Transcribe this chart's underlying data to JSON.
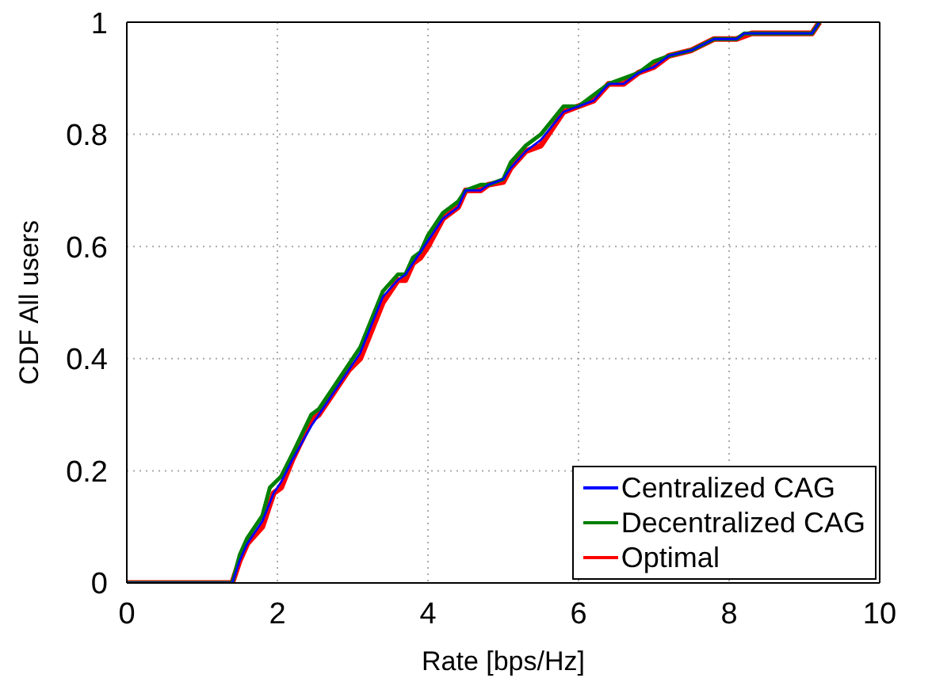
{
  "chart_data": {
    "type": "line",
    "xlabel": "Rate [bps/Hz]",
    "ylabel": "CDF All users",
    "xlim": [
      0,
      10
    ],
    "xticks": [
      0,
      2,
      4,
      6,
      8,
      10
    ],
    "ylim": [
      0,
      1
    ],
    "yticks": [
      0,
      0.2,
      0.4,
      0.6,
      0.8,
      1
    ],
    "grid": true,
    "legend": "bottom right",
    "marker": "none",
    "line_style": "solid",
    "series": [
      {
        "name": "Centralized CAG",
        "color": "#0000ff",
        "x": [
          0,
          1.4,
          1.5,
          1.6,
          1.8,
          1.95,
          2.05,
          2.2,
          2.45,
          2.55,
          2.8,
          2.95,
          3.1,
          3.4,
          3.6,
          3.7,
          3.8,
          3.9,
          4.0,
          4.2,
          4.4,
          4.5,
          4.7,
          4.8,
          5.0,
          5.1,
          5.3,
          5.5,
          5.8,
          6.0,
          6.2,
          6.4,
          6.6,
          6.8,
          7.0,
          7.2,
          7.5,
          7.8,
          8.1,
          8.2,
          9.1,
          9.2
        ],
        "values": [
          0,
          0,
          0.04,
          0.07,
          0.11,
          0.16,
          0.18,
          0.22,
          0.28,
          0.3,
          0.35,
          0.38,
          0.41,
          0.51,
          0.54,
          0.55,
          0.57,
          0.59,
          0.61,
          0.65,
          0.67,
          0.7,
          0.7,
          0.71,
          0.72,
          0.74,
          0.77,
          0.79,
          0.84,
          0.85,
          0.86,
          0.89,
          0.89,
          0.91,
          0.92,
          0.94,
          0.95,
          0.97,
          0.97,
          0.98,
          0.98,
          1.0
        ]
      },
      {
        "name": "Decentralized CAG",
        "color": "#008000",
        "x": [
          0,
          1.4,
          1.5,
          1.6,
          1.8,
          1.9,
          2.05,
          2.2,
          2.45,
          2.55,
          2.8,
          2.9,
          3.1,
          3.4,
          3.6,
          3.7,
          3.8,
          3.9,
          4.0,
          4.2,
          4.4,
          4.5,
          4.7,
          4.8,
          5.0,
          5.1,
          5.3,
          5.5,
          5.8,
          6.0,
          6.2,
          6.4,
          6.6,
          6.8,
          7.0,
          7.2,
          7.5,
          7.8,
          8.1,
          8.2,
          9.1,
          9.2
        ],
        "values": [
          0,
          0,
          0.05,
          0.08,
          0.12,
          0.17,
          0.19,
          0.23,
          0.3,
          0.31,
          0.36,
          0.38,
          0.42,
          0.52,
          0.55,
          0.55,
          0.58,
          0.59,
          0.62,
          0.66,
          0.68,
          0.7,
          0.71,
          0.71,
          0.72,
          0.75,
          0.78,
          0.8,
          0.85,
          0.85,
          0.87,
          0.89,
          0.9,
          0.91,
          0.93,
          0.94,
          0.95,
          0.97,
          0.97,
          0.98,
          0.98,
          1.0
        ]
      },
      {
        "name": "Optimal",
        "color": "#ff0000",
        "x": [
          0,
          1.4,
          1.5,
          1.6,
          1.8,
          1.95,
          2.05,
          2.2,
          2.45,
          2.55,
          2.8,
          2.95,
          3.1,
          3.4,
          3.6,
          3.7,
          3.8,
          3.9,
          4.0,
          4.2,
          4.4,
          4.5,
          4.7,
          4.8,
          5.0,
          5.1,
          5.3,
          5.5,
          5.8,
          6.0,
          6.2,
          6.4,
          6.6,
          6.8,
          7.0,
          7.2,
          7.5,
          7.8,
          8.1,
          8.3,
          9.1,
          9.2
        ],
        "values": [
          0,
          0,
          0.04,
          0.07,
          0.1,
          0.16,
          0.17,
          0.22,
          0.29,
          0.3,
          0.35,
          0.38,
          0.4,
          0.5,
          0.54,
          0.54,
          0.57,
          0.58,
          0.6,
          0.65,
          0.67,
          0.7,
          0.7,
          0.71,
          0.715,
          0.74,
          0.77,
          0.78,
          0.84,
          0.85,
          0.86,
          0.89,
          0.89,
          0.91,
          0.92,
          0.94,
          0.95,
          0.97,
          0.97,
          0.98,
          0.98,
          1.0
        ]
      }
    ]
  }
}
